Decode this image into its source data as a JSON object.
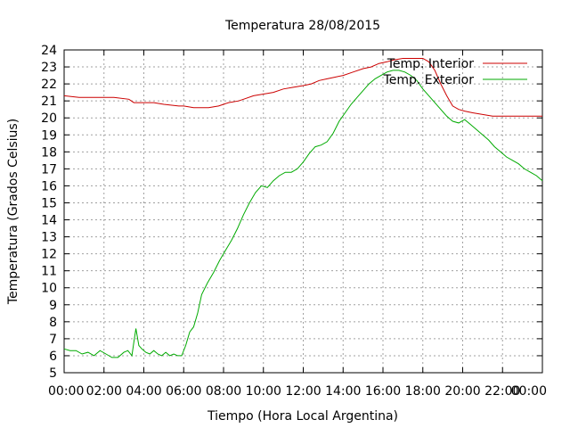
{
  "chart_data": {
    "type": "line",
    "title": "Temperatura 28/08/2015",
    "xlabel": "Tiempo (Hora Local Argentina)",
    "ylabel": "Temperatura (Grados Celsius)",
    "xlim": [
      0,
      24
    ],
    "ylim": [
      5,
      24
    ],
    "grid": true,
    "legend_position": "top-right",
    "x_tick_labels": [
      "00:00",
      "02:00",
      "04:00",
      "06:00",
      "08:00",
      "10:00",
      "12:00",
      "14:00",
      "16:00",
      "18:00",
      "20:00",
      "22:00",
      "00:00"
    ],
    "y_tick_labels": [
      "5",
      "6",
      "7",
      "8",
      "9",
      "10",
      "11",
      "12",
      "13",
      "14",
      "15",
      "16",
      "17",
      "18",
      "19",
      "20",
      "21",
      "22",
      "23",
      "24"
    ],
    "series": [
      {
        "name": "Temp. Interior",
        "color": "#cc0000",
        "x": [
          0,
          0.75,
          1.5,
          2.5,
          3.25,
          3.5,
          4.5,
          5.0,
          5.75,
          6.0,
          6.5,
          7.0,
          7.25,
          7.75,
          8.0,
          8.25,
          8.75,
          9.0,
          9.5,
          10.0,
          10.5,
          11.0,
          11.5,
          12.0,
          12.4,
          12.8,
          13.2,
          13.6,
          14.0,
          14.5,
          15.0,
          15.4,
          15.8,
          16.2,
          16.5,
          17.0,
          17.5,
          18.0,
          18.3,
          18.6,
          18.9,
          19.2,
          19.5,
          19.8,
          20.1,
          20.5,
          21.0,
          21.5,
          22.0,
          23.0,
          24.0
        ],
        "y": [
          21.3,
          21.2,
          21.2,
          21.2,
          21.1,
          20.9,
          20.9,
          20.8,
          20.7,
          20.7,
          20.6,
          20.6,
          20.6,
          20.7,
          20.8,
          20.9,
          21.0,
          21.1,
          21.3,
          21.4,
          21.5,
          21.7,
          21.8,
          21.9,
          22.0,
          22.2,
          22.3,
          22.4,
          22.5,
          22.7,
          22.9,
          23.0,
          23.2,
          23.3,
          23.4,
          23.5,
          23.5,
          23.5,
          23.3,
          22.8,
          22.0,
          21.3,
          20.7,
          20.5,
          20.4,
          20.3,
          20.2,
          20.1,
          20.1,
          20.1,
          20.1
        ]
      },
      {
        "name": "Temp. Exterior",
        "color": "#00aa00",
        "x": [
          0,
          0.3,
          0.6,
          0.9,
          1.2,
          1.5,
          1.8,
          2.1,
          2.4,
          2.7,
          3.0,
          3.2,
          3.4,
          3.5,
          3.6,
          3.75,
          3.9,
          4.1,
          4.3,
          4.5,
          4.7,
          4.9,
          5.1,
          5.3,
          5.5,
          5.7,
          5.9,
          6.1,
          6.3,
          6.5,
          6.7,
          6.9,
          7.2,
          7.5,
          7.8,
          8.1,
          8.4,
          8.7,
          9.0,
          9.3,
          9.6,
          9.9,
          10.2,
          10.5,
          10.8,
          11.1,
          11.4,
          11.7,
          12.0,
          12.3,
          12.6,
          12.9,
          13.2,
          13.5,
          13.8,
          14.1,
          14.4,
          14.7,
          15.0,
          15.3,
          15.6,
          15.9,
          16.2,
          16.5,
          16.8,
          17.1,
          17.4,
          17.7,
          18.0,
          18.3,
          18.6,
          18.9,
          19.2,
          19.5,
          19.8,
          20.1,
          20.4,
          20.7,
          21.0,
          21.3,
          21.6,
          21.9,
          22.2,
          22.5,
          22.8,
          23.1,
          23.4,
          23.7,
          24.0
        ],
        "y": [
          6.4,
          6.3,
          6.3,
          6.1,
          6.2,
          6.0,
          6.3,
          6.1,
          5.9,
          5.9,
          6.2,
          6.3,
          6.0,
          6.8,
          7.6,
          6.6,
          6.4,
          6.2,
          6.1,
          6.3,
          6.1,
          6.0,
          6.2,
          6.0,
          6.1,
          6.0,
          6.0,
          6.6,
          7.4,
          7.7,
          8.5,
          9.6,
          10.3,
          10.9,
          11.6,
          12.2,
          12.8,
          13.5,
          14.3,
          15.0,
          15.6,
          16.0,
          15.9,
          16.3,
          16.6,
          16.8,
          16.8,
          17.0,
          17.4,
          17.9,
          18.3,
          18.4,
          18.6,
          19.1,
          19.8,
          20.3,
          20.8,
          21.2,
          21.6,
          22.0,
          22.3,
          22.5,
          22.7,
          22.8,
          22.8,
          22.7,
          22.5,
          22.2,
          21.7,
          21.3,
          20.9,
          20.5,
          20.1,
          19.8,
          19.7,
          19.9,
          19.6,
          19.3,
          19.0,
          18.7,
          18.3,
          18.0,
          17.7,
          17.5,
          17.3,
          17.0,
          16.8,
          16.6,
          16.3
        ]
      }
    ]
  }
}
